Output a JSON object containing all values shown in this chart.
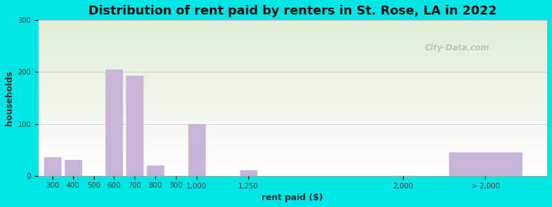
{
  "title": "Distribution of rent paid by renters in St. Rose, LA in 2022",
  "xlabel": "rent paid ($)",
  "ylabel": "households",
  "categories": [
    "300",
    "400",
    "500",
    "600",
    "700",
    "800",
    "900",
    "1,000",
    "1,250",
    "2,000",
    "> 2,000"
  ],
  "x_values": [
    300,
    400,
    500,
    600,
    700,
    800,
    900,
    1000,
    1250,
    2000,
    2400
  ],
  "tick_positions": [
    300,
    400,
    500,
    600,
    700,
    800,
    900,
    1000,
    1250,
    2000,
    2400
  ],
  "values": [
    35,
    30,
    0,
    205,
    193,
    20,
    0,
    100,
    10,
    0,
    45
  ],
  "bar_widths": [
    80,
    80,
    80,
    80,
    80,
    80,
    80,
    80,
    80,
    80,
    350
  ],
  "bar_color": "#c8b4d8",
  "outer_bg": "#00e5e5",
  "ylim": [
    0,
    300
  ],
  "yticks": [
    0,
    100,
    200,
    300
  ],
  "xlim_min": 230,
  "xlim_max": 2700,
  "title_fontsize": 13,
  "axis_label_fontsize": 9,
  "tick_fontsize": 7.5,
  "watermark": "City-Data.com"
}
